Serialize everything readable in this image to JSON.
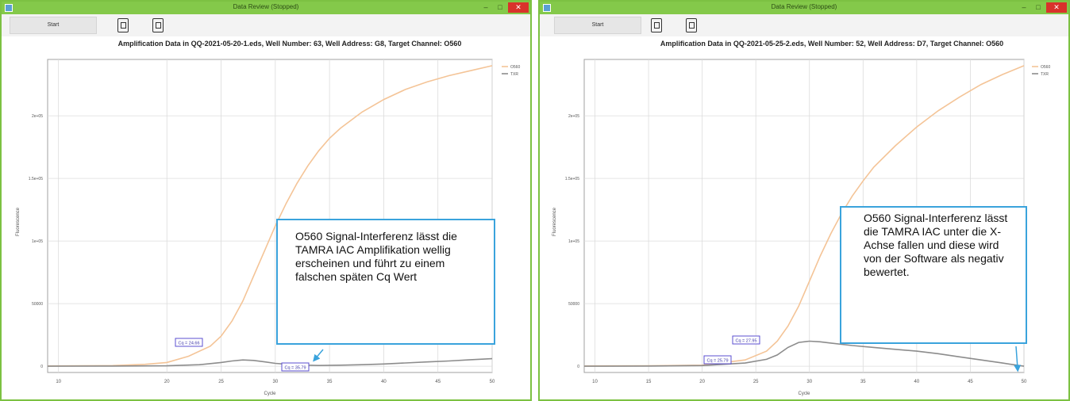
{
  "windows": [
    {
      "title": "Data Review (Stopped)",
      "start_label": "Start",
      "chart_title": "Amplification Data in QQ-2021-05-20-1.eds, Well Number: 63, Well Address: G8, Target Channel: O560",
      "cq_labels": [
        "Cq = 24.66",
        "Cq = 35.79"
      ],
      "callout": "O560 Signal-Interferenz lässt die TAMRA IAC Amplifikation wellig erscheinen und führt zu einem falschen späten Cq Wert"
    },
    {
      "title": "Data Review (Stopped)",
      "start_label": "Start",
      "chart_title": "Amplification Data in QQ-2021-05-25-2.eds, Well Number: 52, Well Address: D7, Target Channel: O560",
      "cq_labels": [
        "Cq = 27.95",
        "Cq = 25.79"
      ],
      "callout": "O560 Signal-Interferenz lässt die TAMRA IAC unter die X-Achse fallen und diese wird von der Software als negativ bewertet."
    }
  ],
  "chart_data": [
    {
      "type": "line",
      "title": "Amplification Data in QQ-2021-05-20-1.eds, Well Number: 63, Well Address: G8, Target Channel: O560",
      "xlabel": "Cycle",
      "ylabel": "Fluorescence",
      "xlim": [
        9,
        50
      ],
      "ylim": [
        -5000,
        245000
      ],
      "xticks": [
        10,
        20,
        25,
        30,
        35,
        40,
        45,
        50
      ],
      "xtick_labels": [
        "10",
        "20",
        "25",
        "30",
        "35",
        "40",
        "45",
        "50"
      ],
      "yticks": [
        0,
        50000,
        100000,
        150000,
        200000
      ],
      "ytick_labels": [
        "0",
        "50000",
        "1e+05",
        "1.5e+05",
        "2e+05"
      ],
      "grid": true,
      "legend": "top-right",
      "series": [
        {
          "name": "O560",
          "color": "#f4c497",
          "x": [
            9,
            12,
            15,
            18,
            20,
            22,
            24,
            25,
            26,
            27,
            28,
            29,
            30,
            31,
            32,
            33,
            34,
            35,
            36,
            38,
            40,
            42,
            44,
            46,
            48,
            50
          ],
          "y": [
            200,
            300,
            500,
            1500,
            3000,
            8000,
            16000,
            24000,
            36000,
            52000,
            72000,
            92000,
            112000,
            130000,
            146000,
            160000,
            172000,
            182000,
            190000,
            203000,
            213000,
            221000,
            227000,
            232000,
            236000,
            240000
          ]
        },
        {
          "name": "TXR",
          "color": "#8c8c8c",
          "x": [
            9,
            15,
            20,
            23,
            25,
            26,
            27,
            28,
            29,
            30,
            31,
            32,
            34,
            36,
            38,
            40,
            42,
            44,
            46,
            48,
            50
          ],
          "y": [
            0,
            100,
            300,
            1200,
            3000,
            4200,
            5000,
            4600,
            3500,
            2300,
            1600,
            1000,
            600,
            800,
            1200,
            1800,
            2600,
            3400,
            4200,
            5200,
            6000
          ]
        }
      ],
      "annotations": [
        {
          "text": "Cq = 24.66",
          "x": 24.66,
          "y": 22000
        },
        {
          "text": "Cq = 35.79",
          "x": 35.79,
          "y": 1500
        }
      ]
    },
    {
      "type": "line",
      "title": "Amplification Data in QQ-2021-05-25-2.eds, Well Number: 52, Well Address: D7, Target Channel: O560",
      "xlabel": "Cycle",
      "ylabel": "Fluorescence",
      "xlim": [
        9,
        50
      ],
      "ylim": [
        -5000,
        245000
      ],
      "xticks": [
        10,
        15,
        20,
        25,
        30,
        35,
        40,
        45,
        50
      ],
      "xtick_labels": [
        "10",
        "15",
        "20",
        "25",
        "30",
        "35",
        "40",
        "45",
        "50"
      ],
      "yticks": [
        0,
        50000,
        100000,
        150000,
        200000
      ],
      "ytick_labels": [
        "0",
        "50000",
        "1e+05",
        "1.5e+05",
        "2e+05"
      ],
      "grid": true,
      "legend": "top-right",
      "series": [
        {
          "name": "O560",
          "color": "#f4c497",
          "x": [
            9,
            15,
            20,
            24,
            26,
            27,
            28,
            29,
            30,
            31,
            32,
            33,
            34,
            35,
            36,
            38,
            40,
            42,
            44,
            46,
            48,
            50
          ],
          "y": [
            200,
            300,
            800,
            5000,
            12000,
            20000,
            32000,
            48000,
            68000,
            88000,
            106000,
            122000,
            136000,
            148000,
            159000,
            176000,
            191000,
            204000,
            215000,
            225000,
            233000,
            240000
          ]
        },
        {
          "name": "TXR",
          "color": "#8c8c8c",
          "x": [
            9,
            15,
            20,
            24,
            26,
            27,
            28,
            29,
            30,
            31,
            32,
            34,
            36,
            38,
            40,
            42,
            44,
            46,
            48,
            50
          ],
          "y": [
            0,
            100,
            500,
            2500,
            5500,
            9000,
            15000,
            19000,
            20000,
            19500,
            18500,
            16500,
            15000,
            13500,
            12000,
            10000,
            7500,
            5000,
            2500,
            0
          ]
        }
      ],
      "annotations": [
        {
          "text": "Cq = 27.95",
          "x": 27.95,
          "y": 23000
        },
        {
          "text": "Cq = 25.79",
          "x": 25.79,
          "y": 7000
        }
      ]
    }
  ]
}
